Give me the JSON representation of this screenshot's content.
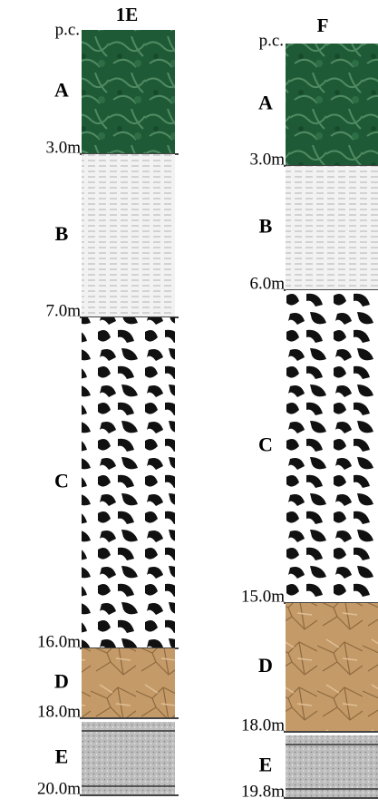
{
  "columns": [
    {
      "title": "1E",
      "top_label": "p.c.",
      "layers": [
        {
          "label": "A",
          "depth": "3.0m"
        },
        {
          "label": "B",
          "depth": "7.0m"
        },
        {
          "label": "C",
          "depth": "16.0m"
        },
        {
          "label": "D",
          "depth": "18.0m"
        },
        {
          "label": "E",
          "depth": "20.0m"
        }
      ]
    },
    {
      "title": "F",
      "top_label": "p.c.",
      "layers": [
        {
          "label": "A",
          "depth": "3.0m"
        },
        {
          "label": "B",
          "depth": "6.0m"
        },
        {
          "label": "C",
          "depth": "15.0m"
        },
        {
          "label": "D",
          "depth": "18.0m"
        },
        {
          "label": "E",
          "depth": "19.8m"
        }
      ]
    }
  ]
}
